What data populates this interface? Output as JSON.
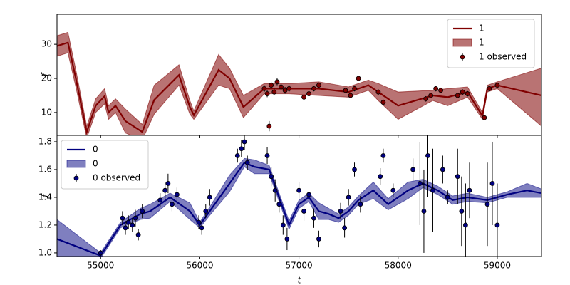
{
  "chart_data": [
    {
      "type": "line",
      "ylabel": "f",
      "xlim": [
        54560,
        59446
      ],
      "xticks": [
        55000,
        56000,
        57000,
        58000,
        59000
      ],
      "ylim": [
        3.3,
        38.8
      ],
      "yticks": [
        10,
        20,
        30
      ],
      "legend_loc": "upper right",
      "series": [
        {
          "name": "1",
          "kind": "line",
          "color": "#800000",
          "x": [
            54560,
            54670,
            54750,
            54860,
            54950,
            55040,
            55080,
            55150,
            55250,
            55420,
            55540,
            55790,
            55900,
            55940,
            56190,
            56300,
            56440,
            56650,
            56900,
            57200,
            57500,
            57700,
            57800,
            58000,
            58350,
            58500,
            58700,
            58850,
            58900,
            59000,
            59446
          ],
          "values": [
            29.5,
            30.5,
            20,
            4.3,
            12,
            14.8,
            10,
            12,
            7.5,
            4.3,
            13.7,
            21,
            11.6,
            9.2,
            22.5,
            20,
            11.6,
            17,
            17,
            17,
            16,
            18,
            16,
            12,
            15,
            14.5,
            16,
            9,
            17,
            18,
            15
          ]
        },
        {
          "name": "1",
          "kind": "band",
          "color": "#800000",
          "alpha": 0.55,
          "x": [
            54560,
            54670,
            54750,
            54860,
            54950,
            55040,
            55080,
            55150,
            55250,
            55420,
            55540,
            55790,
            55900,
            55940,
            56190,
            56300,
            56440,
            56650,
            56900,
            57200,
            57500,
            57700,
            57800,
            58000,
            58350,
            58500,
            58700,
            58850,
            58900,
            59000,
            59446
          ],
          "lower": [
            26.5,
            27.5,
            17.5,
            2.5,
            10,
            12.5,
            8,
            10,
            4,
            2,
            9.5,
            18,
            9.5,
            8,
            18,
            17,
            8.5,
            15.5,
            15.5,
            15,
            14.5,
            16.5,
            13.5,
            8,
            13.5,
            12,
            14.5,
            8,
            16,
            17,
            6
          ],
          "upper": [
            32.5,
            33.5,
            22.5,
            6,
            14,
            17,
            12,
            14,
            11,
            6.5,
            18,
            24,
            13.5,
            10.5,
            27,
            23,
            15,
            18.5,
            18.5,
            19,
            17.5,
            19.5,
            18.5,
            16,
            16.5,
            17,
            17.5,
            10,
            18,
            19,
            23
          ]
        },
        {
          "name": "1 observed",
          "kind": "errorbar",
          "color": "#800000",
          "x": [
            56650,
            56680,
            56700,
            56720,
            56750,
            56780,
            56820,
            56860,
            56900,
            57050,
            57100,
            57150,
            57200,
            57470,
            57520,
            57560,
            57600,
            57800,
            57850,
            58280,
            58330,
            58380,
            58430,
            58600,
            58650,
            58700,
            58870,
            58920,
            59000
          ],
          "values": [
            17,
            15.5,
            6,
            18,
            16,
            19,
            17.5,
            16.5,
            17,
            14.5,
            15.5,
            17,
            18,
            16.5,
            15,
            17,
            20,
            16,
            13,
            14,
            15,
            17,
            16.5,
            15,
            16,
            15.5,
            8.5,
            17,
            18
          ],
          "errors": [
            1,
            1,
            1.5,
            1,
            1,
            1,
            1,
            1,
            1,
            0.8,
            0.8,
            0.8,
            0.8,
            0.8,
            0.8,
            0.8,
            0.8,
            0.8,
            0.8,
            0.8,
            0.8,
            0.8,
            0.8,
            0.8,
            0.8,
            0.8,
            0.8,
            0.8,
            0.8
          ]
        }
      ]
    },
    {
      "type": "line",
      "ylabel": "f",
      "xlabel": "t",
      "xlim": [
        54560,
        59446
      ],
      "xticks": [
        55000,
        56000,
        57000,
        58000,
        59000
      ],
      "ylim": [
        0.974,
        1.846
      ],
      "yticks": [
        {
          "value": 1,
          "label": "1.0"
        },
        1.2,
        1.4,
        1.6,
        1.8
      ],
      "legend_loc": "upper left",
      "series": [
        {
          "name": "0",
          "kind": "line",
          "color": "#000080",
          "x": [
            54560,
            55000,
            55200,
            55400,
            55500,
            55700,
            55900,
            56000,
            56100,
            56300,
            56450,
            56550,
            56700,
            56800,
            56900,
            57000,
            57100,
            57200,
            57300,
            57400,
            57500,
            57600,
            57750,
            57900,
            58100,
            58250,
            58400,
            58550,
            58700,
            58900,
            59100,
            59300,
            59446
          ],
          "values": [
            1.1,
            0.98,
            1.2,
            1.28,
            1.3,
            1.4,
            1.3,
            1.2,
            1.3,
            1.5,
            1.65,
            1.62,
            1.6,
            1.4,
            1.2,
            1.35,
            1.4,
            1.3,
            1.28,
            1.25,
            1.3,
            1.38,
            1.45,
            1.35,
            1.45,
            1.5,
            1.45,
            1.38,
            1.4,
            1.38,
            1.42,
            1.45,
            1.43
          ]
        },
        {
          "name": "0",
          "kind": "band",
          "color": "#000080",
          "alpha": 0.5,
          "x": [
            54560,
            55000,
            55200,
            55400,
            55500,
            55700,
            55900,
            56000,
            56100,
            56300,
            56450,
            56550,
            56700,
            56800,
            56900,
            57000,
            57100,
            57200,
            57300,
            57400,
            57500,
            57600,
            57750,
            57900,
            58100,
            58250,
            58400,
            58550,
            58700,
            58900,
            59100,
            59300,
            59446
          ],
          "lower": [
            0.96,
            0.96,
            1.18,
            1.24,
            1.25,
            1.37,
            1.24,
            1.18,
            1.27,
            1.44,
            1.62,
            1.57,
            1.57,
            1.37,
            1.17,
            1.32,
            1.37,
            1.24,
            1.24,
            1.22,
            1.27,
            1.35,
            1.39,
            1.31,
            1.39,
            1.47,
            1.42,
            1.35,
            1.37,
            1.36,
            1.4,
            1.4,
            1.4
          ],
          "upper": [
            1.24,
            1.0,
            1.22,
            1.32,
            1.35,
            1.43,
            1.36,
            1.22,
            1.33,
            1.56,
            1.68,
            1.67,
            1.63,
            1.43,
            1.23,
            1.38,
            1.43,
            1.36,
            1.32,
            1.28,
            1.33,
            1.41,
            1.51,
            1.39,
            1.51,
            1.53,
            1.48,
            1.41,
            1.43,
            1.4,
            1.44,
            1.5,
            1.46
          ]
        },
        {
          "name": "0 observed",
          "kind": "errorbar",
          "color": "#000080",
          "x": [
            55000,
            55220,
            55250,
            55280,
            55320,
            55350,
            55380,
            55420,
            55600,
            55650,
            55680,
            55720,
            55770,
            55990,
            56020,
            56060,
            56100,
            56380,
            56420,
            56450,
            56480,
            56680,
            56720,
            56760,
            56800,
            56840,
            56880,
            57000,
            57050,
            57100,
            57150,
            57200,
            57420,
            57460,
            57500,
            57560,
            57620,
            57820,
            57850,
            57950,
            58150,
            58220,
            58260,
            58300,
            58350,
            58450,
            58500,
            58600,
            58640,
            58680,
            58720,
            58900,
            58950,
            59000
          ],
          "values": [
            1.0,
            1.25,
            1.18,
            1.22,
            1.2,
            1.25,
            1.13,
            1.3,
            1.38,
            1.45,
            1.5,
            1.35,
            1.42,
            1.22,
            1.18,
            1.3,
            1.4,
            1.7,
            1.75,
            1.8,
            1.65,
            1.7,
            1.55,
            1.45,
            1.35,
            1.2,
            1.1,
            1.45,
            1.3,
            1.42,
            1.25,
            1.1,
            1.3,
            1.18,
            1.4,
            1.6,
            1.35,
            1.55,
            1.7,
            1.45,
            1.6,
            1.5,
            1.3,
            1.7,
            1.45,
            1.6,
            1.4,
            1.55,
            1.3,
            1.2,
            1.45,
            1.35,
            1.5,
            1.2
          ],
          "errors": [
            0.02,
            0.05,
            0.05,
            0.05,
            0.05,
            0.06,
            0.04,
            0.05,
            0.05,
            0.06,
            0.07,
            0.05,
            0.05,
            0.05,
            0.05,
            0.05,
            0.06,
            0.05,
            0.06,
            0.06,
            0.05,
            0.06,
            0.07,
            0.08,
            0.06,
            0.07,
            0.08,
            0.06,
            0.07,
            0.06,
            0.07,
            0.06,
            0.06,
            0.07,
            0.06,
            0.05,
            0.06,
            0.06,
            0.05,
            0.05,
            0.08,
            0.3,
            0.3,
            0.3,
            0.3,
            0.1,
            0.05,
            0.2,
            0.25,
            0.3,
            0.2,
            0.3,
            0.3,
            0.3
          ]
        }
      ]
    }
  ]
}
